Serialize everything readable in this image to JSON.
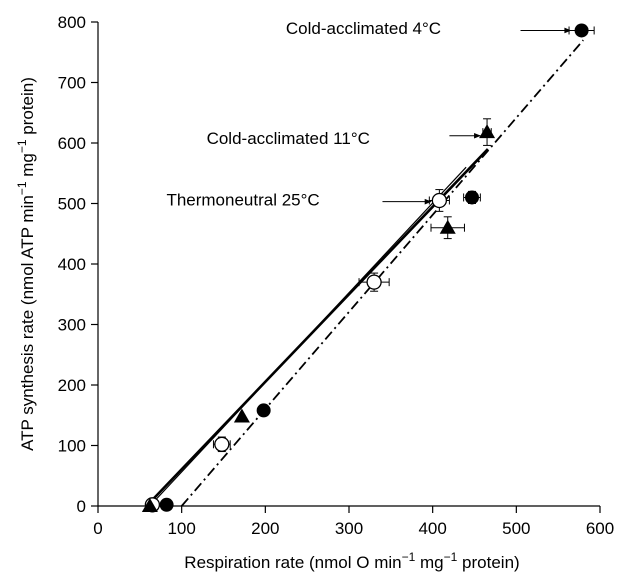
{
  "chart_data": {
    "type": "scatter",
    "title": "",
    "xlabel": {
      "pre": "Respiration rate (nmol O min",
      "sup1": "−1",
      "mid": " mg",
      "sup2": "−1",
      "post": " protein)"
    },
    "ylabel": {
      "pre": "ATP synthesis rate (nmol ATP min",
      "sup1": "−1",
      "mid": " mg",
      "sup2": "−1",
      "post": " protein)"
    },
    "xlim": [
      0,
      600
    ],
    "ylim": [
      0,
      800
    ],
    "xticks": [
      0,
      100,
      200,
      300,
      400,
      500,
      600
    ],
    "yticks": [
      0,
      100,
      200,
      300,
      400,
      500,
      600,
      700,
      800
    ],
    "x_tick_labels": [
      "0",
      "100",
      "200",
      "300",
      "400",
      "500",
      "600"
    ],
    "y_tick_labels": [
      "0",
      "100",
      "200",
      "300",
      "400",
      "500",
      "600",
      "700",
      "800"
    ],
    "grid": false,
    "legend": "none",
    "series": [
      {
        "marker": "open-circle",
        "line_style": "thin-solid",
        "points": [
          {
            "x": 65,
            "y": 2,
            "xerr": 0,
            "yerr": 0
          },
          {
            "x": 148,
            "y": 102,
            "xerr": 10,
            "yerr": 12
          },
          {
            "x": 330,
            "y": 370,
            "xerr": 18,
            "yerr": 15
          },
          {
            "x": 408,
            "y": 505,
            "xerr": 12,
            "yerr": 18
          }
        ],
        "fit": {
          "x1": 62,
          "y1": 0,
          "x2": 440,
          "y2": 560
        }
      },
      {
        "marker": "filled-triangle",
        "line_style": "thick-solid",
        "points": [
          {
            "x": 62,
            "y": 0,
            "xerr": 0,
            "yerr": 0
          },
          {
            "x": 172,
            "y": 148,
            "xerr": 0,
            "yerr": 0
          },
          {
            "x": 418,
            "y": 460,
            "xerr": 20,
            "yerr": 18
          },
          {
            "x": 465,
            "y": 618,
            "xerr": 5,
            "yerr": 22
          }
        ],
        "fit": {
          "x1": 58,
          "y1": 0,
          "x2": 466,
          "y2": 590
        }
      },
      {
        "marker": "filled-circle",
        "line_style": "dash-dot",
        "points": [
          {
            "x": 82,
            "y": 2,
            "xerr": 0,
            "yerr": 0
          },
          {
            "x": 198,
            "y": 158,
            "xerr": 0,
            "yerr": 0
          },
          {
            "x": 447,
            "y": 510,
            "xerr": 10,
            "yerr": 10
          },
          {
            "x": 578,
            "y": 786,
            "xerr": 15,
            "yerr": 0
          }
        ],
        "fit": {
          "x1": 100,
          "y1": 0,
          "x2": 580,
          "y2": 770
        }
      }
    ],
    "annotations": [
      {
        "text": "Cold-acclimated 4°C",
        "text_x": 410,
        "text_y": 790,
        "arrow_from_x": 505,
        "arrow_to_x": 565,
        "arrow_y": 786
      },
      {
        "text": "Cold-acclimated 11°C",
        "text_x": 325,
        "text_y": 608,
        "arrow_from_x": 420,
        "arrow_to_x": 457,
        "arrow_y": 612
      },
      {
        "text": "Thermoneutral 25°C",
        "text_x": 265,
        "text_y": 507,
        "arrow_from_x": 340,
        "arrow_to_x": 398,
        "arrow_y": 503
      }
    ]
  }
}
